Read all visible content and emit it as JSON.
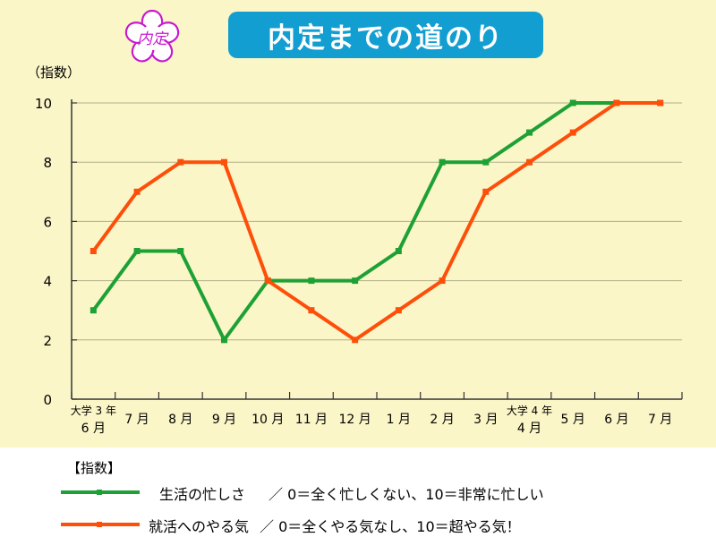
{
  "header": {
    "title": "内定までの道のり",
    "stamp_text": "内定",
    "unit_label": "（指数）"
  },
  "colors": {
    "background": "#fbf6c8",
    "title_badge": "#129ed0",
    "busyness": "#1da135",
    "motivation": "#fd4f0a",
    "stamp": "#c719d0"
  },
  "chart_data": {
    "type": "line",
    "title": "内定までの道のり",
    "ylabel": "（指数）",
    "xlabel": "",
    "categories": [
      [
        "大学 3 年",
        "6 月"
      ],
      [
        "7 月"
      ],
      [
        "8 月"
      ],
      [
        "9 月"
      ],
      [
        "10 月"
      ],
      [
        "11 月"
      ],
      [
        "12 月"
      ],
      [
        "1 月"
      ],
      [
        "2 月"
      ],
      [
        "3 月"
      ],
      [
        "大学 4 年",
        "4 月"
      ],
      [
        "5 月"
      ],
      [
        "6 月"
      ],
      [
        "7 月"
      ]
    ],
    "yticks": [
      "0",
      "2",
      "4",
      "6",
      "8",
      "10"
    ],
    "ylim": [
      0,
      10
    ],
    "grid": true,
    "series": [
      {
        "name": "生活の忙しさ",
        "color": "#1da135",
        "values": [
          3,
          5,
          5,
          2,
          4,
          4,
          4,
          5,
          8,
          8,
          9,
          10,
          10,
          10
        ]
      },
      {
        "name": "就活へのやる気",
        "color": "#fd4f0a",
        "values": [
          5,
          7,
          8,
          8,
          4,
          3,
          2,
          3,
          4,
          7,
          8,
          9,
          10,
          10
        ]
      }
    ]
  },
  "legend": {
    "heading": "【指数】",
    "items": [
      {
        "label": "生活の忙しさ",
        "scale": "／ 0＝全く忙しくない、10＝非常に忙しい"
      },
      {
        "label": "就活へのやる気",
        "scale": "／ 0＝全くやる気なし、10＝超やる気！"
      }
    ]
  }
}
